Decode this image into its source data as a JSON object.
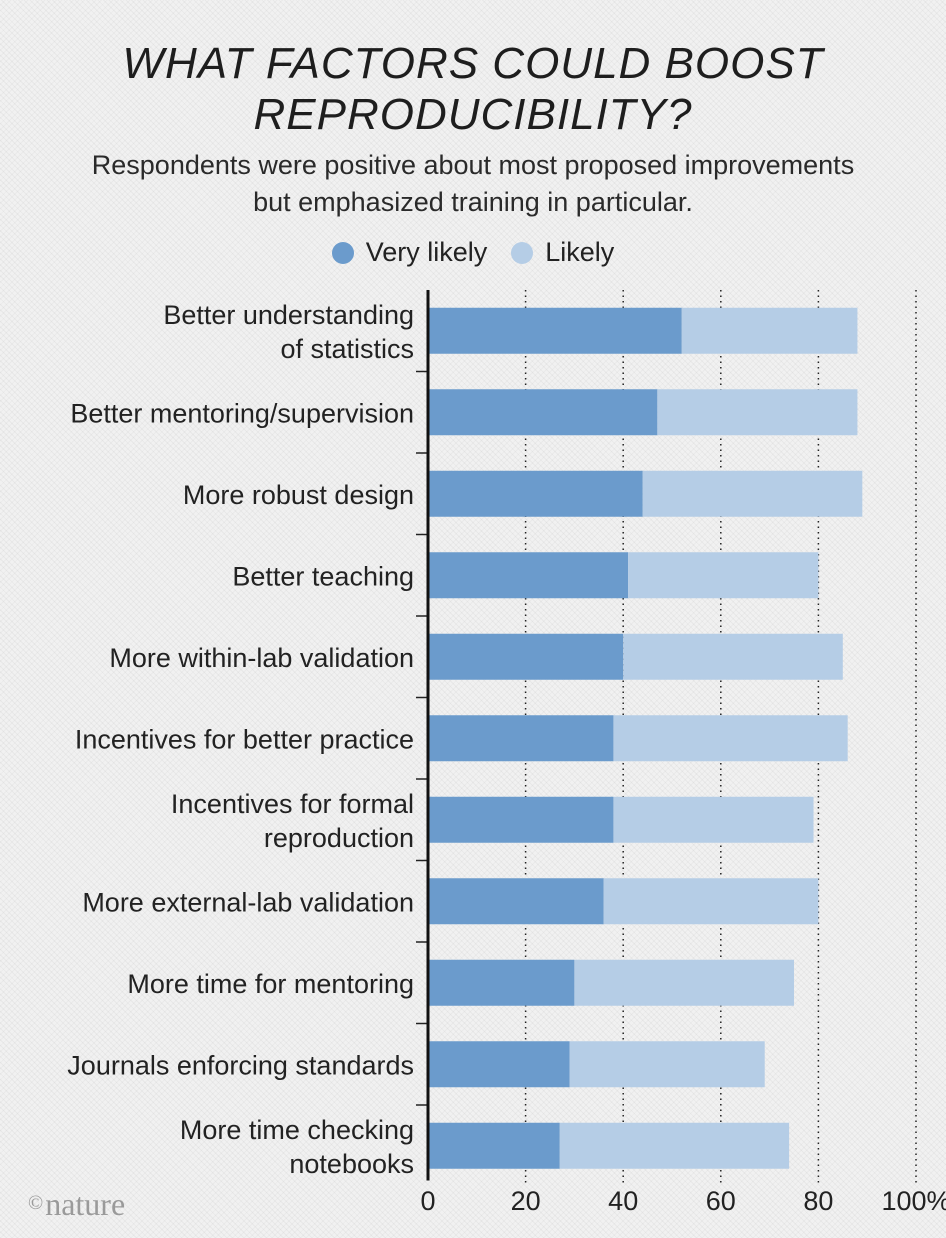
{
  "title_lines": [
    "WHAT FACTORS COULD BOOST",
    "REPRODUCIBILITY?"
  ],
  "subtitle_lines": [
    "Respondents were positive about most proposed improvements",
    "but emphasized training in particular."
  ],
  "legend": [
    {
      "label": "Very likely",
      "color": "#6b9bcc"
    },
    {
      "label": "Likely",
      "color": "#b5cde6"
    }
  ],
  "logo": {
    "symbol": "©",
    "text": "nature"
  },
  "chart_data": {
    "type": "bar",
    "orientation": "horizontal",
    "stacked": true,
    "title": "WHAT FACTORS COULD BOOST REPRODUCIBILITY?",
    "subtitle": "Respondents were positive about most proposed improvements but emphasized training in particular.",
    "categories": [
      [
        "Better understanding",
        "of statistics"
      ],
      [
        "Better mentoring/supervision"
      ],
      [
        "More robust design"
      ],
      [
        "Better teaching"
      ],
      [
        "More within-lab validation"
      ],
      [
        "Incentives for better practice"
      ],
      [
        "Incentives for formal",
        "reproduction"
      ],
      [
        "More external-lab validation"
      ],
      [
        "More time for mentoring"
      ],
      [
        "Journals enforcing standards"
      ],
      [
        "More time checking",
        "notebooks"
      ]
    ],
    "series": [
      {
        "name": "Very likely",
        "color": "#6b9bcc",
        "values": [
          52,
          47,
          44,
          41,
          40,
          38,
          38,
          36,
          30,
          29,
          27
        ]
      },
      {
        "name": "Likely",
        "color": "#b5cde6",
        "values": [
          36,
          41,
          45,
          39,
          45,
          48,
          41,
          44,
          45,
          40,
          47
        ]
      }
    ],
    "xlim": [
      0,
      100
    ],
    "xticks": [
      0,
      20,
      40,
      60,
      80,
      100
    ],
    "xtick_labels": [
      "0",
      "20",
      "40",
      "60",
      "80",
      "100%"
    ],
    "grid": "vertical dotted",
    "legend_position": "top-center"
  }
}
